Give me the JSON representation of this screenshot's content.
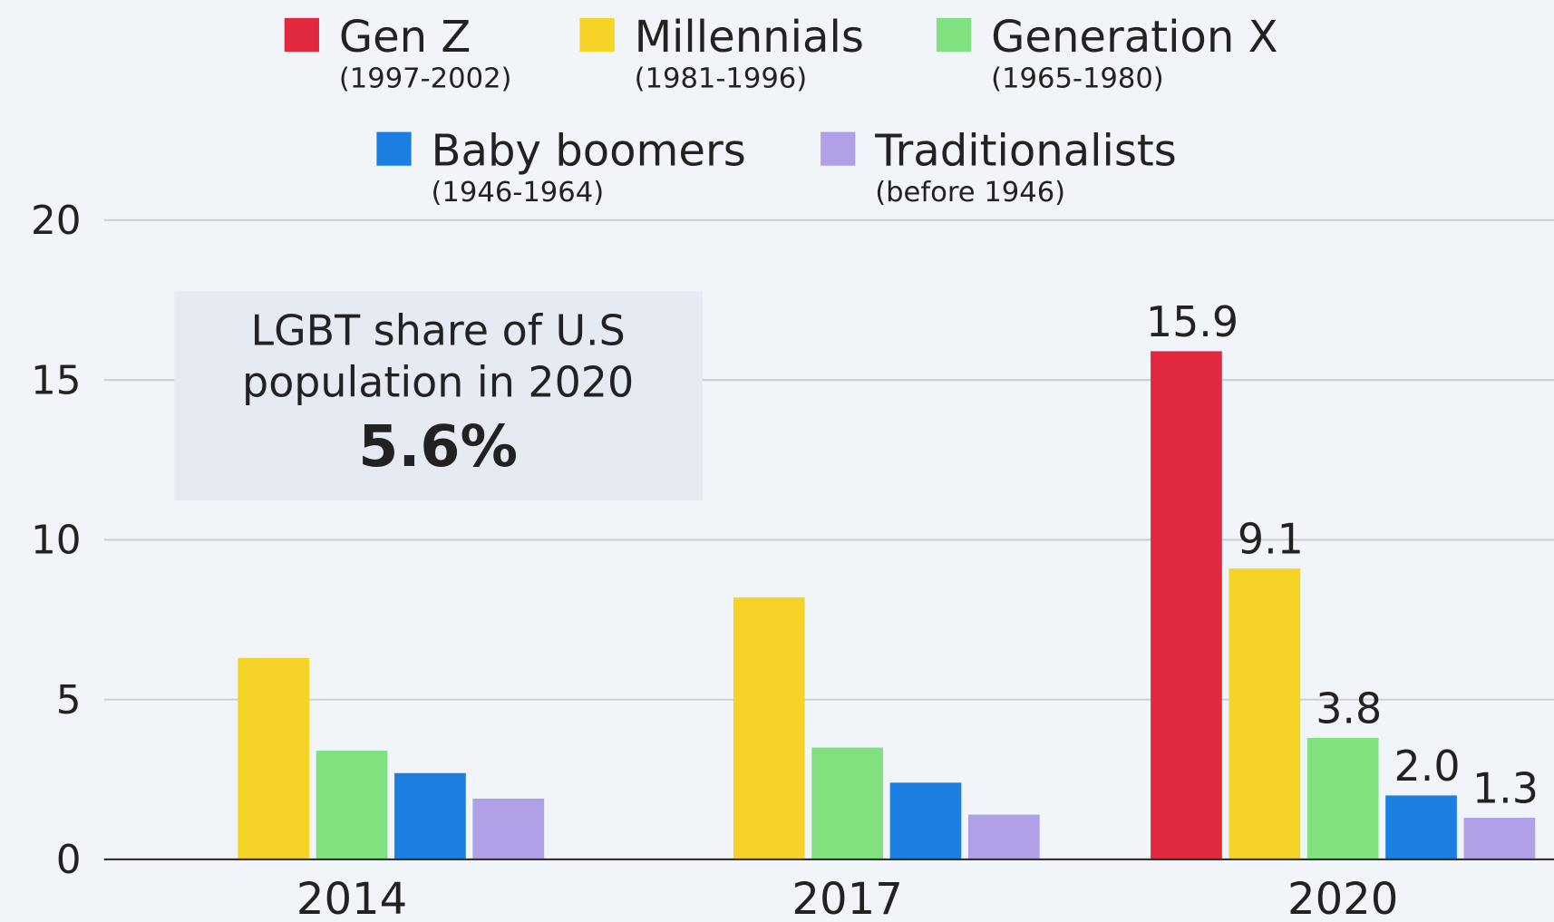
{
  "chart_data": {
    "type": "bar",
    "categories": [
      "2014",
      "2017",
      "2020"
    ],
    "series": [
      {
        "name": "Gen Z",
        "years": "(1997-2002)",
        "color": "#e0283e",
        "values": [
          null,
          null,
          15.9
        ],
        "value_labels": [
          null,
          null,
          "15.9"
        ]
      },
      {
        "name": "Millennials",
        "years": "(1981-1996)",
        "color": "#f5d327",
        "values": [
          6.3,
          8.2,
          9.1
        ],
        "value_labels": [
          null,
          null,
          "9.1"
        ]
      },
      {
        "name": "Generation X",
        "years": "(1965-1980)",
        "color": "#80e27e",
        "values": [
          3.4,
          3.5,
          3.8
        ],
        "value_labels": [
          null,
          null,
          "3.8"
        ]
      },
      {
        "name": "Baby boomers",
        "years": "(1946-1964)",
        "color": "#1a7fe0",
        "values": [
          2.7,
          2.4,
          2.0
        ],
        "value_labels": [
          null,
          null,
          "2.0"
        ]
      },
      {
        "name": "Traditionalists",
        "years": "(before 1946)",
        "color": "#b0a0e8",
        "values": [
          1.9,
          1.4,
          1.3
        ],
        "value_labels": [
          null,
          null,
          "1.3"
        ]
      }
    ],
    "annotation": {
      "lines": [
        "LGBT share of U.S",
        "population in 2020"
      ],
      "highlight": "5.6%"
    },
    "ylim": [
      0,
      20
    ],
    "yticks": [
      0,
      5,
      10,
      15,
      20
    ],
    "grid": true,
    "legend": "top"
  }
}
